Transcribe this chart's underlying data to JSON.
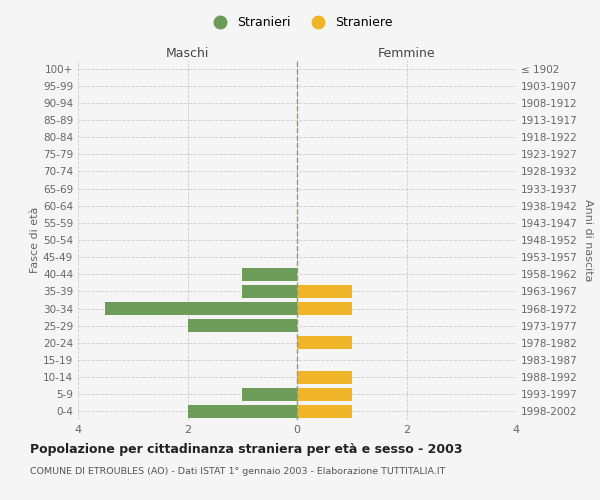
{
  "age_groups": [
    "100+",
    "95-99",
    "90-94",
    "85-89",
    "80-84",
    "75-79",
    "70-74",
    "65-69",
    "60-64",
    "55-59",
    "50-54",
    "45-49",
    "40-44",
    "35-39",
    "30-34",
    "25-29",
    "20-24",
    "15-19",
    "10-14",
    "5-9",
    "0-4"
  ],
  "birth_years": [
    "≤ 1902",
    "1903-1907",
    "1908-1912",
    "1913-1917",
    "1918-1922",
    "1923-1927",
    "1928-1932",
    "1933-1937",
    "1938-1942",
    "1943-1947",
    "1948-1952",
    "1953-1957",
    "1958-1962",
    "1963-1967",
    "1968-1972",
    "1973-1977",
    "1978-1982",
    "1983-1987",
    "1988-1992",
    "1993-1997",
    "1998-2002"
  ],
  "maschi": [
    0,
    0,
    0,
    0,
    0,
    0,
    0,
    0,
    0,
    0,
    0,
    0,
    1,
    1,
    3.5,
    2,
    0,
    0,
    0,
    1,
    2
  ],
  "femmine": [
    0,
    0,
    0,
    0,
    0,
    0,
    0,
    0,
    0,
    0,
    0,
    0,
    0,
    1,
    1,
    0,
    1,
    0,
    1,
    1,
    1
  ],
  "maschi_color": "#6d9b5a",
  "femmine_color": "#f0b429",
  "background_color": "#f5f5f5",
  "grid_color": "#cccccc",
  "title": "Popolazione per cittadinanza straniera per età e sesso - 2003",
  "subtitle": "COMUNE DI ETROUBLES (AO) - Dati ISTAT 1° gennaio 2003 - Elaborazione TUTTITALIA.IT",
  "header_left": "Maschi",
  "header_right": "Femmine",
  "ylabel_left": "Fasce di età",
  "ylabel_right": "Anni di nascita",
  "legend_stranieri": "Stranieri",
  "legend_straniere": "Straniere",
  "xlim": 4,
  "bar_height": 0.75
}
